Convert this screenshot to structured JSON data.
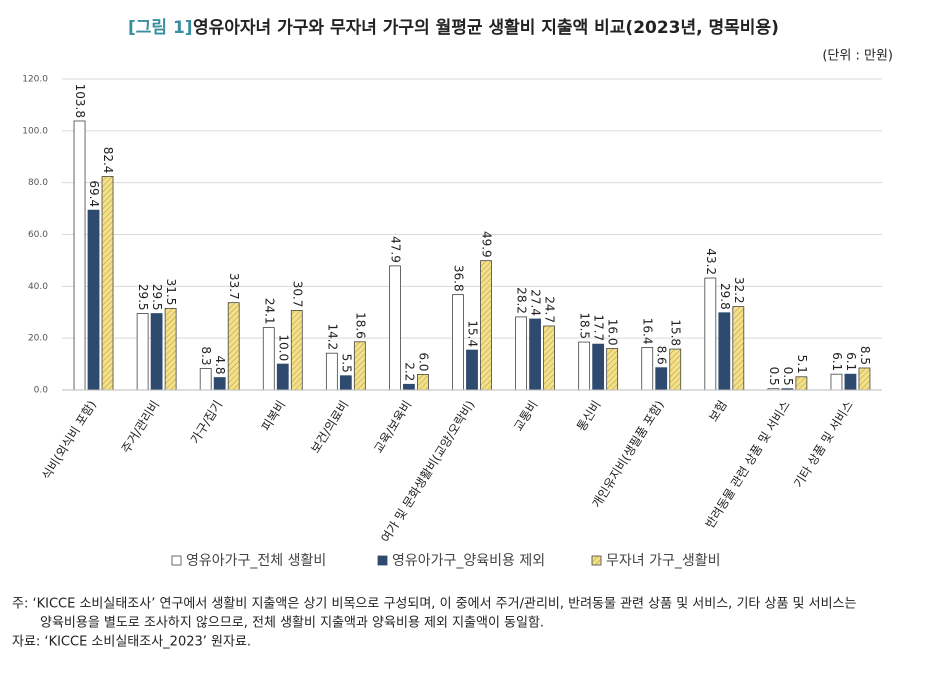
{
  "chart_data": {
    "type": "bar",
    "figure_label": "[그림 1]",
    "title": "영유아자녀 가구와 무자녀 가구의 월평균 생활비 지출액 비교(2023년, 명목비용)",
    "unit": "(단위 : 만원)",
    "categories": [
      "식비(외식비 포함)",
      "주거/관리비",
      "가구/집기",
      "피복비",
      "보건/의료비",
      "교육/보육비",
      "여가 및 문화생활비(교양/오락비)",
      "교통비",
      "통신비",
      "개인유지비(생필품 포함)",
      "보험",
      "반려동물 관련 상품 및 서비스",
      "기타 상품 및 서비스"
    ],
    "series": [
      {
        "name": "영유아가구_전체 생활비",
        "color": "#ffffff",
        "values": [
          103.8,
          29.5,
          8.3,
          24.1,
          14.2,
          47.9,
          36.8,
          28.2,
          18.5,
          16.4,
          43.2,
          0.5,
          6.1
        ],
        "value_labels": [
          "103.8",
          "29.5",
          "8.3",
          "24.1",
          "14.2",
          "47.9",
          "36.8",
          "28.2",
          "18.5",
          "16.4",
          "43.2",
          "0.5",
          "6.1"
        ]
      },
      {
        "name": "영유아가구_양육비용 제외",
        "color": "#2e4a6e",
        "values": [
          69.4,
          29.5,
          4.8,
          10.0,
          5.5,
          2.2,
          15.4,
          27.4,
          17.7,
          8.6,
          29.8,
          0.5,
          6.1
        ],
        "value_labels": [
          "69.4",
          "29.5",
          "4.8",
          "10.0",
          "5.5",
          "2.2",
          "15.4",
          "27.4",
          "17.7",
          "8.6",
          "29.8",
          "0.5",
          "6.1"
        ]
      },
      {
        "name": "무자녀 가구_생활비",
        "color": "#f3e08a",
        "values": [
          82.4,
          31.5,
          33.7,
          30.7,
          18.6,
          6.0,
          49.9,
          24.7,
          16.0,
          15.8,
          32.2,
          5.1,
          8.5
        ],
        "value_labels": [
          "82.4",
          "31.5",
          "33.7",
          "30.7",
          "18.6",
          "6.0",
          "49.9",
          "24.7",
          "16.0",
          "15.8",
          "32.2",
          "5.1",
          "8.5"
        ]
      }
    ],
    "ylim": [
      0,
      120
    ],
    "yticks": [
      {
        "value": 0,
        "label": "0.0"
      },
      {
        "value": 20,
        "label": "20.0"
      },
      {
        "value": 40,
        "label": "40.0"
      },
      {
        "value": 60,
        "label": "60.0"
      },
      {
        "value": 80,
        "label": "80.0"
      },
      {
        "value": 100,
        "label": "100.0"
      },
      {
        "value": 120,
        "label": "120.0"
      }
    ],
    "grid": true,
    "legend": "bottom",
    "notes": [
      "주: ‘KICCE 소비실태조사’ 연구에서 생활비 지출액은 상기 비목으로 구성되며, 이 중에서 주거/관리비, 반려동물 관련 상품 및 서비스, 기타 상품 및 서비스는",
      "양육비용을 별도로 조사하지 않으므로, 전체 생활비 지출액과 양육비용 제외 지출액이 동일함."
    ],
    "source": "자료: ‘KICCE 소비실태조사_2023’ 원자료."
  }
}
